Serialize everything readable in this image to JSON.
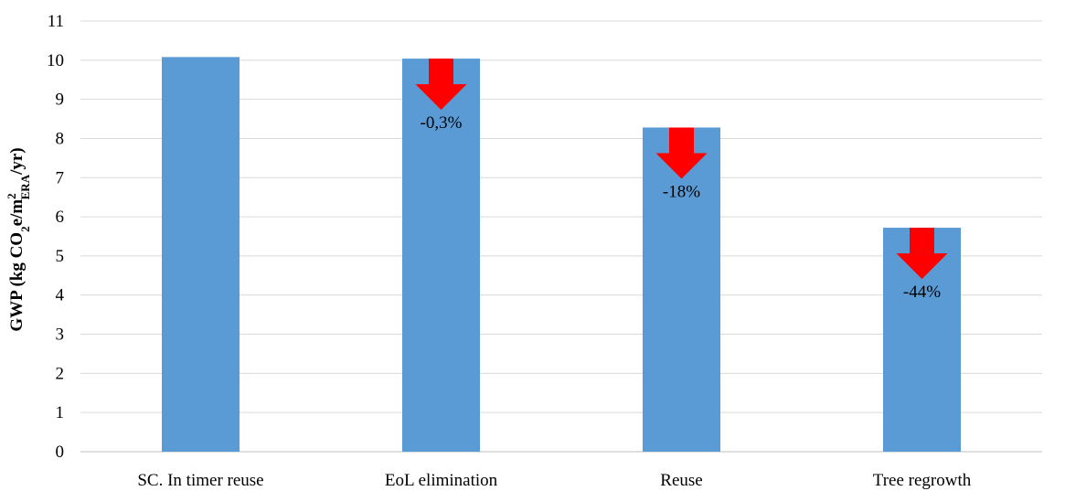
{
  "chart_data": {
    "type": "bar",
    "categories": [
      "SC. In timer reuse",
      "EoL elimination",
      "Reuse",
      "Tree regrowth"
    ],
    "values": [
      10.08,
      10.04,
      8.28,
      5.72
    ],
    "ylabel": {
      "main": "GWP (kg CO",
      "sub1": "2",
      "mid": "e/m",
      "sup": "2",
      "sub2": "ERA",
      "end": "/yr)"
    },
    "ylim": [
      0,
      11
    ],
    "yticks": [
      0,
      1,
      2,
      3,
      4,
      5,
      6,
      7,
      8,
      9,
      10,
      11
    ],
    "grid": true,
    "bar_color": "#5b9bd5",
    "arrow_color": "#ff0000",
    "annotations": [
      {
        "category": "EoL elimination",
        "text": "-0,3%"
      },
      {
        "category": "Reuse",
        "text": "-18%"
      },
      {
        "category": "Tree regrowth",
        "text": "-44%"
      }
    ]
  }
}
